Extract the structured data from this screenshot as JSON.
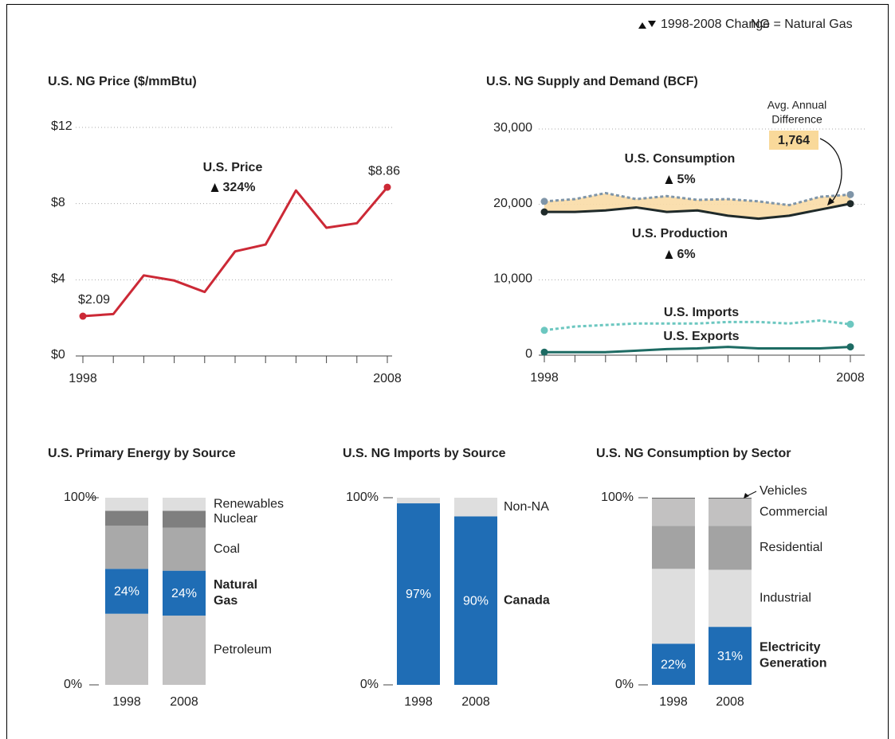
{
  "header": {
    "change": "1998-2008 Change",
    "note": "NG = Natural Gas"
  },
  "chart_data": [
    {
      "type": "line",
      "title": "U.S. NG Price ($/mmBtu)",
      "x": [
        1998,
        1999,
        2000,
        2001,
        2002,
        2003,
        2004,
        2005,
        2006,
        2007,
        2008
      ],
      "xlim": [
        1998,
        2008
      ],
      "xticks": [
        1998,
        2008
      ],
      "ylim": [
        0,
        12
      ],
      "yticks": [
        {
          "value": 0,
          "label": "$0"
        },
        {
          "value": 4,
          "label": "$4"
        },
        {
          "value": 8,
          "label": "$8"
        },
        {
          "value": 12,
          "label": "$12"
        }
      ],
      "grid": true,
      "series": [
        {
          "name": "U.S. Price",
          "color": "#cc2936",
          "change": "324%",
          "values": [
            2.09,
            2.2,
            4.23,
            3.96,
            3.36,
            5.49,
            5.85,
            8.69,
            6.73,
            6.97,
            8.86
          ],
          "value_labels": [
            "$2.09",
            null,
            null,
            null,
            null,
            null,
            null,
            null,
            null,
            null,
            "$8.86"
          ]
        }
      ]
    },
    {
      "type": "line",
      "title": "U.S. NG Supply and Demand (BCF)",
      "x": [
        1998,
        1999,
        2000,
        2001,
        2002,
        2003,
        2004,
        2005,
        2006,
        2007,
        2008
      ],
      "xlim": [
        1998,
        2008
      ],
      "xticks": [
        1998,
        2008
      ],
      "ylim": [
        0,
        30000
      ],
      "yticks": [
        0,
        {
          "value": 10000,
          "label": "10,000"
        },
        {
          "value": 20000,
          "label": "20,000"
        },
        {
          "value": 30000,
          "label": "30,000"
        }
      ],
      "grid": true,
      "fill_between": {
        "series": [
          0,
          1
        ],
        "color": "#f9dca6"
      },
      "annotation": {
        "lines": [
          "Avg. Annual",
          "Difference"
        ],
        "value": 1764,
        "label": "1,764",
        "color": "#f9d99a"
      },
      "series": [
        {
          "name": "U.S. Consumption",
          "color": "#7f95a8",
          "dash": true,
          "change": "5%",
          "values": [
            20400,
            20700,
            21500,
            20700,
            21100,
            20600,
            20700,
            20400,
            19900,
            21000,
            21300
          ]
        },
        {
          "name": "U.S. Production",
          "color": "#1f2a2a",
          "dash": false,
          "change": "6%",
          "values": [
            19000,
            19000,
            19200,
            19600,
            19000,
            19200,
            18500,
            18100,
            18500,
            19300,
            20100
          ]
        },
        {
          "name": "U.S. Imports",
          "color": "#6cc7c0",
          "dash": true,
          "values": [
            3300,
            3800,
            4000,
            4200,
            4200,
            4200,
            4400,
            4400,
            4200,
            4600,
            4100
          ]
        },
        {
          "name": "U.S. Exports",
          "color": "#1d6b63",
          "dash": false,
          "values": [
            400,
            400,
            400,
            600,
            800,
            900,
            1100,
            900,
            900,
            900,
            1100
          ]
        }
      ]
    },
    {
      "type": "stacked_bar",
      "title": "U.S. Primary Energy by Source",
      "categories": [
        "1998",
        "2008"
      ],
      "ylim": [
        0,
        100
      ],
      "yticks": [
        {
          "value": 0,
          "label": "0%"
        },
        {
          "value": 100,
          "label": "100%"
        }
      ],
      "series": [
        {
          "name": "Petroleum",
          "color": "#c3c2c2",
          "values": [
            38,
            37
          ]
        },
        {
          "name": "Natural Gas",
          "color": "#1f6db5",
          "bold": true,
          "values": [
            24,
            24
          ],
          "value_labels": [
            "24%",
            "24%"
          ]
        },
        {
          "name": "Coal",
          "color": "#a9a9a9",
          "values": [
            23,
            23
          ]
        },
        {
          "name": "Nuclear",
          "color": "#7f7f7f",
          "values": [
            8,
            9
          ]
        },
        {
          "name": "Renewables",
          "color": "#dedede",
          "values": [
            7,
            7
          ]
        }
      ]
    },
    {
      "type": "stacked_bar",
      "title": "U.S. NG Imports by Source",
      "categories": [
        "1998",
        "2008"
      ],
      "ylim": [
        0,
        100
      ],
      "yticks": [
        {
          "value": 0,
          "label": "0%"
        },
        {
          "value": 100,
          "label": "100%"
        }
      ],
      "series": [
        {
          "name": "Canada",
          "color": "#1f6db5",
          "bold": true,
          "values": [
            97,
            90
          ],
          "value_labels": [
            "97%",
            "90%"
          ]
        },
        {
          "name": "Non-NA",
          "color": "#dedede",
          "values": [
            3,
            10
          ]
        }
      ]
    },
    {
      "type": "stacked_bar",
      "title": "U.S. NG Consumption by Sector",
      "categories": [
        "1998",
        "2008"
      ],
      "ylim": [
        0,
        100
      ],
      "yticks": [
        {
          "value": 0,
          "label": "0%"
        },
        {
          "value": 100,
          "label": "100%"
        }
      ],
      "series": [
        {
          "name": "Electricity Generation",
          "color": "#1f6db5",
          "bold": true,
          "values": [
            22,
            31
          ],
          "value_labels": [
            "22%",
            "31%"
          ]
        },
        {
          "name": "Industrial",
          "color": "#dedede",
          "values": [
            40,
            30.5
          ]
        },
        {
          "name": "Residential",
          "color": "#a3a3a3",
          "values": [
            23,
            23.5
          ]
        },
        {
          "name": "Commercial",
          "color": "#c2c1c1",
          "values": [
            14.5,
            14.5
          ]
        },
        {
          "name": "Vehicles",
          "color": "#666666",
          "values": [
            0.5,
            0.5
          ]
        }
      ]
    }
  ]
}
